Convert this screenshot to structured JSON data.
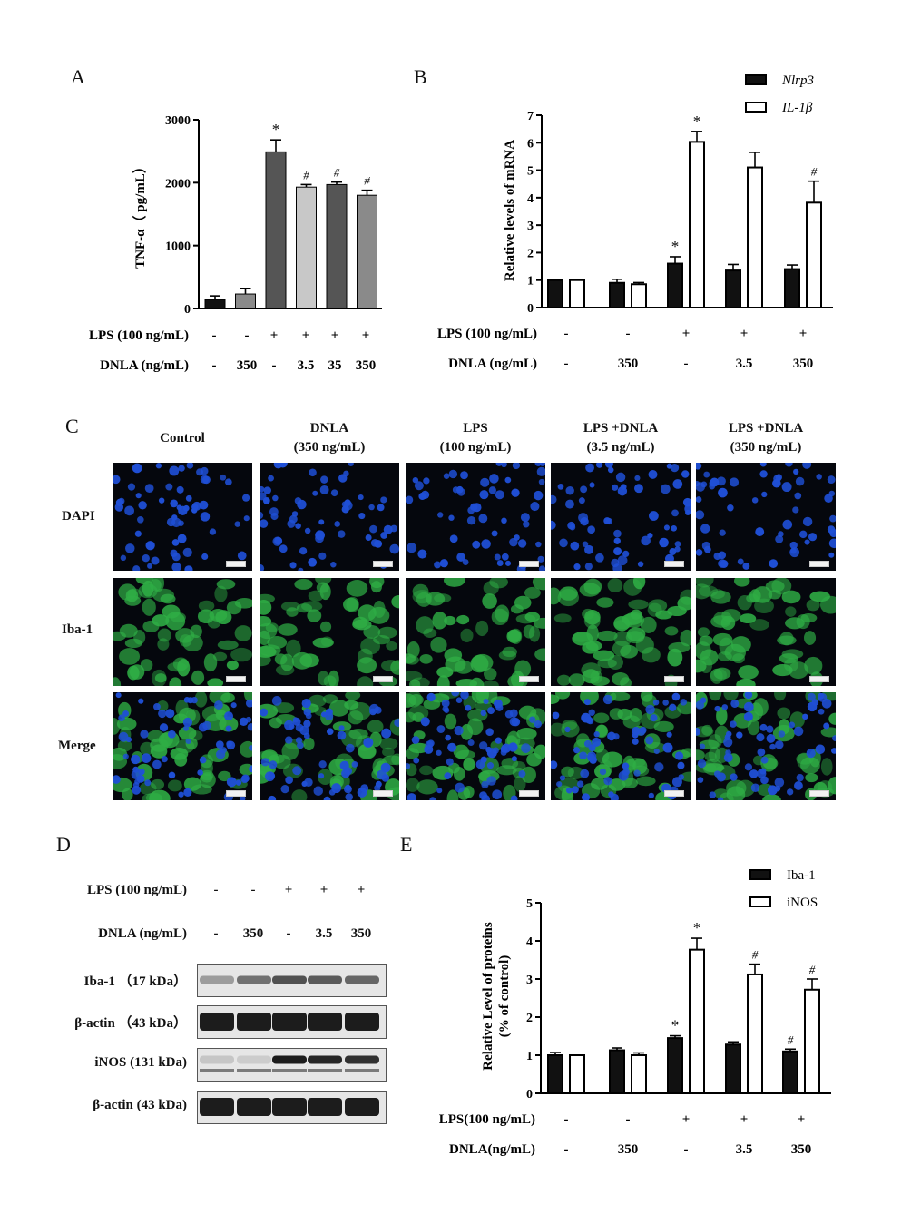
{
  "panels": {
    "A": "A",
    "B": "B",
    "C": "C",
    "D": "D",
    "E": "E"
  },
  "colors": {
    "black_bar": "#111111",
    "dark_gray_bar": "#555555",
    "mid_gray_bar": "#8a8a8a",
    "light_gray_bar": "#c8c8c8",
    "dapi_blue": "#1f4fd6",
    "iba_green": "#2fae45"
  },
  "chart_data": [
    {
      "id": "A",
      "type": "bar",
      "ylabel": "TNF-α（ pg/mL）",
      "ylim": [
        0,
        3000
      ],
      "yticks": [
        0,
        1000,
        2000,
        3000
      ],
      "values": [
        140,
        230,
        2490,
        1930,
        1970,
        1800
      ],
      "errors": [
        60,
        90,
        190,
        40,
        40,
        80
      ],
      "bar_colors": [
        "#111111",
        "#8a8a8a",
        "#555555",
        "#c8c8c8",
        "#555555",
        "#8a8a8a"
      ],
      "markers": [
        "",
        "",
        "*",
        "#",
        "#",
        "#"
      ],
      "rows": [
        {
          "label": "LPS (100 ng/mL)",
          "values": [
            "-",
            "-",
            "+",
            "+",
            "+",
            "+"
          ]
        },
        {
          "label": "DNLA (ng/mL)",
          "values": [
            "-",
            "350",
            "-",
            "3.5",
            "35",
            "350"
          ]
        }
      ]
    },
    {
      "id": "B",
      "type": "bar",
      "ylabel": "Relative levels of mRNA",
      "ylim": [
        0,
        7
      ],
      "yticks": [
        0,
        1,
        2,
        3,
        4,
        5,
        6,
        7
      ],
      "series": [
        {
          "name": "Nlrp3",
          "style": "filled",
          "values": [
            1.0,
            0.9,
            1.6,
            1.35,
            1.4
          ],
          "errors": [
            0,
            0.13,
            0.25,
            0.22,
            0.15
          ],
          "markers": [
            "",
            "",
            "*",
            "",
            ""
          ]
        },
        {
          "name": "IL-1β",
          "style": "open",
          "values": [
            1.0,
            0.85,
            6.03,
            5.1,
            3.82
          ],
          "errors": [
            0,
            0.06,
            0.38,
            0.55,
            0.78
          ],
          "markers": [
            "",
            "",
            "*",
            "",
            "#"
          ]
        }
      ],
      "rows": [
        {
          "label": "LPS (100 ng/mL)",
          "values": [
            "-",
            "-",
            "+",
            "+",
            "+"
          ]
        },
        {
          "label": "DNLA (ng/mL)",
          "values": [
            "-",
            "350",
            "-",
            "3.5",
            "350"
          ]
        }
      ]
    },
    {
      "id": "E",
      "type": "bar",
      "ylabel": "Relative Level of proteins",
      "ylabel2": "(% of control)",
      "ylim": [
        0,
        5
      ],
      "yticks": [
        0,
        1,
        2,
        3,
        4,
        5
      ],
      "series": [
        {
          "name": "Iba-1",
          "style": "filled",
          "values": [
            1.0,
            1.13,
            1.45,
            1.28,
            1.1
          ],
          "errors": [
            0.07,
            0.06,
            0.06,
            0.07,
            0.06
          ],
          "markers": [
            "",
            "",
            "*",
            "",
            "#"
          ]
        },
        {
          "name": "iNOS",
          "style": "open",
          "values": [
            1.0,
            1.0,
            3.77,
            3.12,
            2.72
          ],
          "errors": [
            0,
            0.06,
            0.3,
            0.27,
            0.28
          ],
          "markers": [
            "",
            "",
            "*",
            "#",
            "#"
          ]
        }
      ],
      "rows": [
        {
          "label": "LPS(100 ng/mL)",
          "values": [
            "-",
            "-",
            "+",
            "+",
            "+"
          ]
        },
        {
          "label": "DNLA(ng/mL)",
          "values": [
            "-",
            "350",
            "-",
            "3.5",
            "350"
          ]
        }
      ]
    }
  ],
  "panel_c": {
    "columns": [
      {
        "line1": "Control",
        "line2": ""
      },
      {
        "line1": "DNLA",
        "line2": "(350 ng/mL)"
      },
      {
        "line1": "LPS",
        "line2": "(100 ng/mL)"
      },
      {
        "line1": "LPS +DNLA",
        "line2": "(3.5 ng/mL)"
      },
      {
        "line1": "LPS +DNLA",
        "line2": "(350 ng/mL)"
      }
    ],
    "rows": [
      "DAPI",
      "Iba-1",
      "Merge"
    ]
  },
  "panel_d": {
    "lps_label": "LPS (100 ng/mL)",
    "lps_values": [
      "-",
      "-",
      "+",
      "+",
      "+"
    ],
    "dnla_label": "DNLA (ng/mL)",
    "dnla_values": [
      "-",
      "350",
      "-",
      "3.5",
      "350"
    ],
    "blots": [
      {
        "label": "Iba-1 （17 kDa）",
        "intensity": [
          0.35,
          0.55,
          0.7,
          0.65,
          0.6
        ]
      },
      {
        "label": "β-actin （43 kDa）",
        "intensity": [
          0.95,
          0.95,
          0.95,
          0.95,
          0.95
        ]
      },
      {
        "label": "iNOS (131 kDa)",
        "intensity": [
          0.15,
          0.12,
          0.95,
          0.9,
          0.85
        ]
      },
      {
        "label": "β-actin (43 kDa)",
        "intensity": [
          0.95,
          0.95,
          0.95,
          0.95,
          0.95
        ]
      }
    ]
  }
}
